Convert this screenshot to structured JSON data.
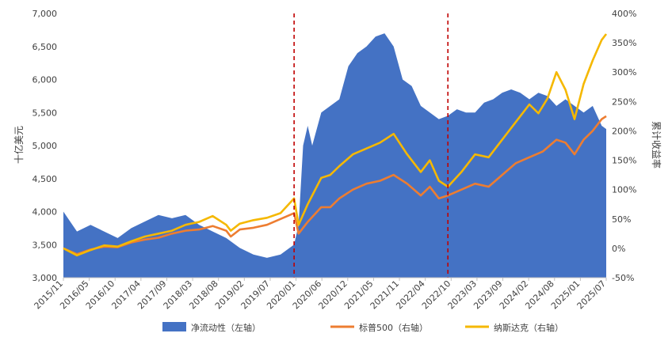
{
  "chart_data": {
    "type": "area",
    "title": "",
    "y_left": {
      "label": "十亿美元",
      "ylim": [
        3000,
        7000
      ],
      "ticks": [
        "3,000",
        "3,500",
        "4,000",
        "4,500",
        "5,000",
        "5,500",
        "6,000",
        "6,500",
        "7,000"
      ]
    },
    "y_right": {
      "label": "累计收益率",
      "ylim": [
        -50,
        400
      ],
      "ticks": [
        "-50%",
        "0%",
        "50%",
        "100%",
        "150%",
        "200%",
        "250%",
        "300%",
        "350%",
        "400%"
      ]
    },
    "x": {
      "start": "2015-11",
      "end": "2025-11",
      "tick_labels": [
        "2015/11",
        "2016/05",
        "2016/10",
        "2017/04",
        "2017/09",
        "2018/03",
        "2018/08",
        "2019/02",
        "2019/07",
        "2020/01",
        "2020/06",
        "2020/12",
        "2021/05",
        "2021/11",
        "2022/04",
        "2022/10",
        "2023/03",
        "2023/09",
        "2024/02",
        "2024/08",
        "2025/01",
        "2025/07"
      ]
    },
    "vlines": [
      "2020-02",
      "2022-12"
    ],
    "series": [
      {
        "name": "净流动性（左轴）",
        "type": "area",
        "axis": "left",
        "color": "#4472C4",
        "points": [
          [
            "2015-11",
            4000
          ],
          [
            "2016-02",
            3700
          ],
          [
            "2016-05",
            3800
          ],
          [
            "2016-08",
            3700
          ],
          [
            "2016-11",
            3600
          ],
          [
            "2017-02",
            3750
          ],
          [
            "2017-05",
            3850
          ],
          [
            "2017-08",
            3950
          ],
          [
            "2017-11",
            3900
          ],
          [
            "2018-02",
            3950
          ],
          [
            "2018-05",
            3800
          ],
          [
            "2018-08",
            3700
          ],
          [
            "2018-11",
            3600
          ],
          [
            "2019-02",
            3450
          ],
          [
            "2019-05",
            3350
          ],
          [
            "2019-08",
            3300
          ],
          [
            "2019-11",
            3350
          ],
          [
            "2020-01",
            3450
          ],
          [
            "2020-02",
            3500
          ],
          [
            "2020-03",
            3800
          ],
          [
            "2020-04",
            5000
          ],
          [
            "2020-05",
            5300
          ],
          [
            "2020-06",
            5000
          ],
          [
            "2020-08",
            5500
          ],
          [
            "2020-10",
            5600
          ],
          [
            "2020-12",
            5700
          ],
          [
            "2021-02",
            6200
          ],
          [
            "2021-04",
            6400
          ],
          [
            "2021-06",
            6500
          ],
          [
            "2021-08",
            6650
          ],
          [
            "2021-10",
            6700
          ],
          [
            "2021-12",
            6500
          ],
          [
            "2022-02",
            6000
          ],
          [
            "2022-04",
            5900
          ],
          [
            "2022-06",
            5600
          ],
          [
            "2022-08",
            5500
          ],
          [
            "2022-10",
            5400
          ],
          [
            "2022-12",
            5450
          ],
          [
            "2023-02",
            5550
          ],
          [
            "2023-04",
            5500
          ],
          [
            "2023-06",
            5500
          ],
          [
            "2023-08",
            5650
          ],
          [
            "2023-10",
            5700
          ],
          [
            "2023-12",
            5800
          ],
          [
            "2024-02",
            5850
          ],
          [
            "2024-04",
            5800
          ],
          [
            "2024-06",
            5700
          ],
          [
            "2024-08",
            5800
          ],
          [
            "2024-10",
            5750
          ],
          [
            "2024-12",
            5600
          ],
          [
            "2025-02",
            5700
          ],
          [
            "2025-04",
            5600
          ],
          [
            "2025-06",
            5500
          ],
          [
            "2025-08",
            5600
          ],
          [
            "2025-10",
            5300
          ],
          [
            "2025-11",
            5250
          ]
        ]
      },
      {
        "name": "标普500（右轴）",
        "type": "line",
        "axis": "right",
        "color": "#ED7D31",
        "points": [
          [
            "2015-11",
            0
          ],
          [
            "2016-02",
            -10
          ],
          [
            "2016-05",
            -2
          ],
          [
            "2016-08",
            3
          ],
          [
            "2016-11",
            2
          ],
          [
            "2017-02",
            10
          ],
          [
            "2017-05",
            15
          ],
          [
            "2017-08",
            18
          ],
          [
            "2017-11",
            25
          ],
          [
            "2018-02",
            30
          ],
          [
            "2018-05",
            32
          ],
          [
            "2018-08",
            38
          ],
          [
            "2018-11",
            30
          ],
          [
            "2018-12",
            20
          ],
          [
            "2019-02",
            32
          ],
          [
            "2019-05",
            35
          ],
          [
            "2019-08",
            40
          ],
          [
            "2019-11",
            50
          ],
          [
            "2020-02",
            60
          ],
          [
            "2020-03",
            25
          ],
          [
            "2020-05",
            45
          ],
          [
            "2020-08",
            70
          ],
          [
            "2020-10",
            70
          ],
          [
            "2020-12",
            85
          ],
          [
            "2021-03",
            100
          ],
          [
            "2021-06",
            110
          ],
          [
            "2021-09",
            115
          ],
          [
            "2021-12",
            125
          ],
          [
            "2022-03",
            110
          ],
          [
            "2022-06",
            90
          ],
          [
            "2022-08",
            105
          ],
          [
            "2022-10",
            85
          ],
          [
            "2022-12",
            90
          ],
          [
            "2023-03",
            100
          ],
          [
            "2023-06",
            110
          ],
          [
            "2023-09",
            105
          ],
          [
            "2023-12",
            125
          ],
          [
            "2024-03",
            145
          ],
          [
            "2024-06",
            155
          ],
          [
            "2024-09",
            165
          ],
          [
            "2024-12",
            185
          ],
          [
            "2025-02",
            180
          ],
          [
            "2025-04",
            160
          ],
          [
            "2025-06",
            185
          ],
          [
            "2025-08",
            200
          ],
          [
            "2025-10",
            220
          ],
          [
            "2025-11",
            225
          ]
        ]
      },
      {
        "name": "纳斯达克（右轴）",
        "type": "line",
        "axis": "right",
        "color": "#F5B800",
        "points": [
          [
            "2015-11",
            0
          ],
          [
            "2016-02",
            -12
          ],
          [
            "2016-05",
            -3
          ],
          [
            "2016-08",
            5
          ],
          [
            "2016-11",
            3
          ],
          [
            "2017-02",
            12
          ],
          [
            "2017-05",
            20
          ],
          [
            "2017-08",
            25
          ],
          [
            "2017-11",
            30
          ],
          [
            "2018-02",
            40
          ],
          [
            "2018-05",
            45
          ],
          [
            "2018-08",
            55
          ],
          [
            "2018-11",
            40
          ],
          [
            "2018-12",
            30
          ],
          [
            "2019-02",
            42
          ],
          [
            "2019-05",
            48
          ],
          [
            "2019-08",
            52
          ],
          [
            "2019-11",
            60
          ],
          [
            "2020-02",
            85
          ],
          [
            "2020-03",
            40
          ],
          [
            "2020-05",
            75
          ],
          [
            "2020-08",
            120
          ],
          [
            "2020-10",
            125
          ],
          [
            "2020-12",
            140
          ],
          [
            "2021-03",
            160
          ],
          [
            "2021-06",
            170
          ],
          [
            "2021-09",
            180
          ],
          [
            "2021-12",
            195
          ],
          [
            "2022-03",
            160
          ],
          [
            "2022-06",
            130
          ],
          [
            "2022-08",
            150
          ],
          [
            "2022-10",
            115
          ],
          [
            "2022-12",
            105
          ],
          [
            "2023-03",
            130
          ],
          [
            "2023-06",
            160
          ],
          [
            "2023-09",
            155
          ],
          [
            "2023-12",
            185
          ],
          [
            "2024-03",
            215
          ],
          [
            "2024-06",
            245
          ],
          [
            "2024-08",
            230
          ],
          [
            "2024-10",
            255
          ],
          [
            "2024-12",
            300
          ],
          [
            "2025-02",
            270
          ],
          [
            "2025-04",
            220
          ],
          [
            "2025-06",
            280
          ],
          [
            "2025-08",
            320
          ],
          [
            "2025-10",
            355
          ],
          [
            "2025-11",
            365
          ]
        ]
      }
    ],
    "legend": {
      "placement": "bottom-center",
      "items": [
        "净流动性（左轴）",
        "标普500（右轴）",
        "纳斯达克（右轴）"
      ]
    }
  }
}
